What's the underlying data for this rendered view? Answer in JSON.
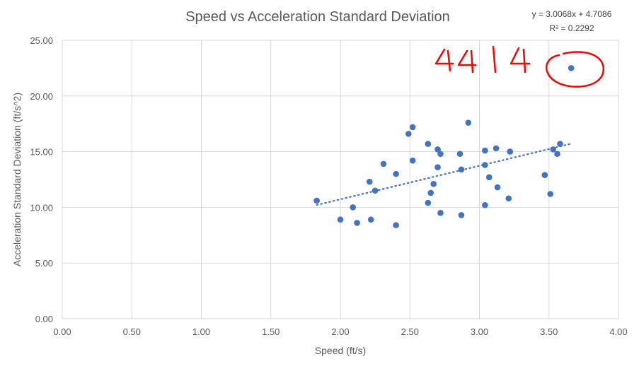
{
  "chart_data": {
    "type": "scatter",
    "title": "Speed vs Acceleration Standard Deviation",
    "xlabel": "Speed (ft/s)",
    "ylabel": "Acceleration Standard Deviation (ft/s^2)",
    "xlim": [
      0,
      4
    ],
    "ylim": [
      0,
      25
    ],
    "xticks": [
      "0.00",
      "0.50",
      "1.00",
      "1.50",
      "2.00",
      "2.50",
      "3.00",
      "3.50",
      "4.00"
    ],
    "yticks": [
      "0.00",
      "5.00",
      "10.00",
      "15.00",
      "20.00",
      "25.00"
    ],
    "grid": true,
    "point_color": "#4472C4",
    "points": [
      [
        1.83,
        10.6
      ],
      [
        2.0,
        8.9
      ],
      [
        2.09,
        10.0
      ],
      [
        2.12,
        8.6
      ],
      [
        2.21,
        12.3
      ],
      [
        2.22,
        8.9
      ],
      [
        2.25,
        11.5
      ],
      [
        2.31,
        13.9
      ],
      [
        2.4,
        13.0
      ],
      [
        2.4,
        8.4
      ],
      [
        2.49,
        16.6
      ],
      [
        2.52,
        17.2
      ],
      [
        2.52,
        14.2
      ],
      [
        2.63,
        15.7
      ],
      [
        2.63,
        10.4
      ],
      [
        2.65,
        11.3
      ],
      [
        2.67,
        12.1
      ],
      [
        2.7,
        15.2
      ],
      [
        2.7,
        13.6
      ],
      [
        2.72,
        14.8
      ],
      [
        2.72,
        9.5
      ],
      [
        2.86,
        14.8
      ],
      [
        2.87,
        13.4
      ],
      [
        2.87,
        9.3
      ],
      [
        2.92,
        17.6
      ],
      [
        3.04,
        15.1
      ],
      [
        3.04,
        13.8
      ],
      [
        3.04,
        10.2
      ],
      [
        3.07,
        12.7
      ],
      [
        3.12,
        15.3
      ],
      [
        3.13,
        11.8
      ],
      [
        3.22,
        15.0
      ],
      [
        3.21,
        10.8
      ],
      [
        3.47,
        12.9
      ],
      [
        3.51,
        11.2
      ],
      [
        3.53,
        15.2
      ],
      [
        3.56,
        14.8
      ],
      [
        3.58,
        15.7
      ],
      [
        3.66,
        22.5
      ]
    ],
    "trendline": {
      "type": "linear",
      "style": "dotted",
      "slope": 3.0068,
      "intercept": 4.7086,
      "x_range": [
        1.83,
        3.66
      ],
      "equation": "y = 3.0068x + 4.7086",
      "r_squared": "R² = 0.2292"
    },
    "annotation": {
      "text": "4414",
      "color": "#FF0000",
      "style": "handwritten, circling the outlier point"
    }
  }
}
